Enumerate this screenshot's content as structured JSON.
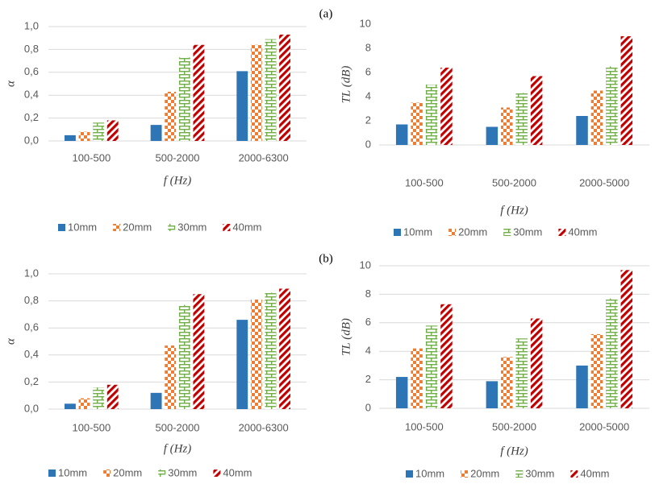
{
  "chart_data": [
    {
      "type": "bar",
      "ylabel": "α",
      "xlabel": "f (Hz)",
      "categories": [
        "100-500",
        "500-2000",
        "2000-6300"
      ],
      "series": [
        {
          "name": "10mm",
          "color": "#2e75b6",
          "pattern": "solid",
          "values": [
            0.05,
            0.14,
            0.61
          ]
        },
        {
          "name": "20mm",
          "color": "#ed7d31",
          "pattern": "checker",
          "values": [
            0.08,
            0.43,
            0.84
          ]
        },
        {
          "name": "30mm",
          "color": "#70ad47",
          "pattern": "brick",
          "values": [
            0.16,
            0.73,
            0.89
          ]
        },
        {
          "name": "40mm",
          "color": "#c00000",
          "pattern": "diagonal",
          "values": [
            0.18,
            0.84,
            0.93
          ]
        }
      ],
      "ylim": [
        0,
        1
      ],
      "yticks": [
        {
          "value": 0,
          "label": "0,0"
        },
        {
          "value": 0.2,
          "label": "0,2"
        },
        {
          "value": 0.4,
          "label": "0,4"
        },
        {
          "value": 0.6,
          "label": "0,6"
        },
        {
          "value": 0.8,
          "label": "0,8"
        },
        {
          "value": 1,
          "label": "1,0"
        }
      ],
      "grid": true,
      "legend": "bottom"
    },
    {
      "type": "bar",
      "ylabel": "TL (dB)",
      "xlabel": "f (Hz)",
      "annotation": "(a)",
      "categories": [
        "100-500",
        "500-2000",
        "2000-5000"
      ],
      "series": [
        {
          "name": "10mm",
          "color": "#2e75b6",
          "pattern": "solid",
          "values": [
            1.7,
            1.5,
            2.4
          ]
        },
        {
          "name": "20mm",
          "color": "#ed7d31",
          "pattern": "checker",
          "values": [
            3.5,
            3.1,
            4.5
          ]
        },
        {
          "name": "30mm",
          "color": "#70ad47",
          "pattern": "brick",
          "values": [
            5.0,
            4.3,
            6.5
          ]
        },
        {
          "name": "40mm",
          "color": "#c00000",
          "pattern": "diagonal",
          "values": [
            6.4,
            5.7,
            9.0
          ]
        }
      ],
      "ylim": [
        0,
        10
      ],
      "yticks": [
        0,
        2,
        4,
        6,
        8,
        10
      ],
      "grid": false,
      "legend": "bottom"
    },
    {
      "type": "bar",
      "ylabel": "α",
      "xlabel": "f (Hz)",
      "categories": [
        "100-500",
        "500-2000",
        "2000-6300"
      ],
      "series": [
        {
          "name": "10mm",
          "color": "#2e75b6",
          "pattern": "solid",
          "values": [
            0.04,
            0.12,
            0.66
          ]
        },
        {
          "name": "20mm",
          "color": "#ed7d31",
          "pattern": "checker",
          "values": [
            0.08,
            0.47,
            0.81
          ]
        },
        {
          "name": "30mm",
          "color": "#70ad47",
          "pattern": "brick",
          "values": [
            0.16,
            0.77,
            0.86
          ]
        },
        {
          "name": "40mm",
          "color": "#c00000",
          "pattern": "diagonal",
          "values": [
            0.18,
            0.85,
            0.89
          ]
        }
      ],
      "ylim": [
        0,
        1
      ],
      "yticks": [
        {
          "value": 0,
          "label": "0,0"
        },
        {
          "value": 0.2,
          "label": "0,2"
        },
        {
          "value": 0.4,
          "label": "0,4"
        },
        {
          "value": 0.6,
          "label": "0,6"
        },
        {
          "value": 0.8,
          "label": "0,8"
        },
        {
          "value": 1,
          "label": "1,0"
        }
      ],
      "grid": true,
      "legend": "bottom"
    },
    {
      "type": "bar",
      "ylabel": "TL (dB)",
      "xlabel": "f (Hz)",
      "annotation": "(b)",
      "categories": [
        "100-500",
        "500-2000",
        "2000-5000"
      ],
      "series": [
        {
          "name": "10mm",
          "color": "#2e75b6",
          "pattern": "solid",
          "values": [
            2.2,
            1.9,
            3.0
          ]
        },
        {
          "name": "20mm",
          "color": "#ed7d31",
          "pattern": "checker",
          "values": [
            4.2,
            3.6,
            5.2
          ]
        },
        {
          "name": "30mm",
          "color": "#70ad47",
          "pattern": "brick",
          "values": [
            5.8,
            4.9,
            7.7
          ]
        },
        {
          "name": "40mm",
          "color": "#c00000",
          "pattern": "diagonal",
          "values": [
            7.3,
            6.3,
            9.7
          ]
        }
      ],
      "ylim": [
        0,
        10
      ],
      "yticks": [
        0,
        2,
        4,
        6,
        8,
        10
      ],
      "grid": true,
      "legend": "bottom"
    }
  ]
}
